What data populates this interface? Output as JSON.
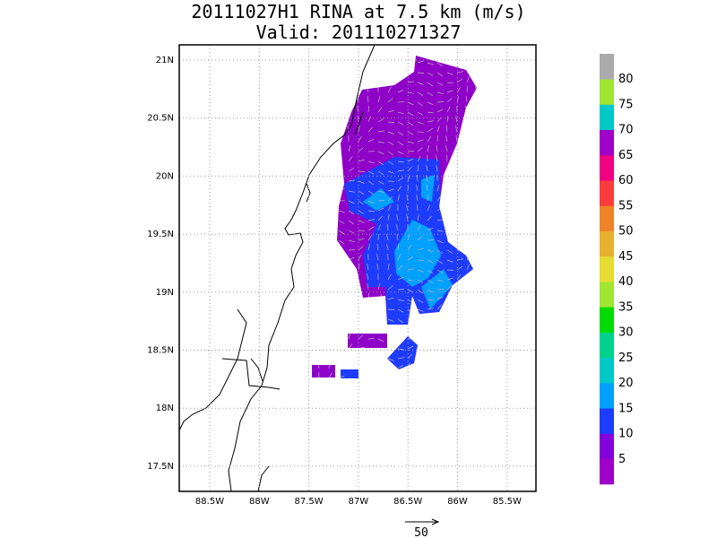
{
  "header": {
    "title": "20111027H1 RINA at 7.5 km (m/s)",
    "subtitle": "Valid: 201110271327"
  },
  "map": {
    "lat_labels": [
      "21N",
      "20.5N",
      "20N",
      "19.5N",
      "19N",
      "18.5N",
      "18N",
      "17.5N"
    ],
    "lon_labels": [
      "88.5W",
      "88W",
      "87.5W",
      "87W",
      "86.5W",
      "86W",
      "85.5W"
    ],
    "reference_vector": "50"
  },
  "colorbar": {
    "levels": [
      5,
      10,
      15,
      20,
      25,
      30,
      35,
      40,
      45,
      50,
      55,
      60,
      65,
      70,
      75,
      80
    ],
    "colors": [
      "#a000c8",
      "#8200dc",
      "#1e3cff",
      "#00a0ff",
      "#00c8c8",
      "#00d28c",
      "#00dc00",
      "#a0e632",
      "#e6dc32",
      "#e6af2d",
      "#f08228",
      "#fa3c3c",
      "#f00082",
      "#a000c8",
      "#00c8c8",
      "#a0e632",
      "#aaaaaa"
    ]
  }
}
